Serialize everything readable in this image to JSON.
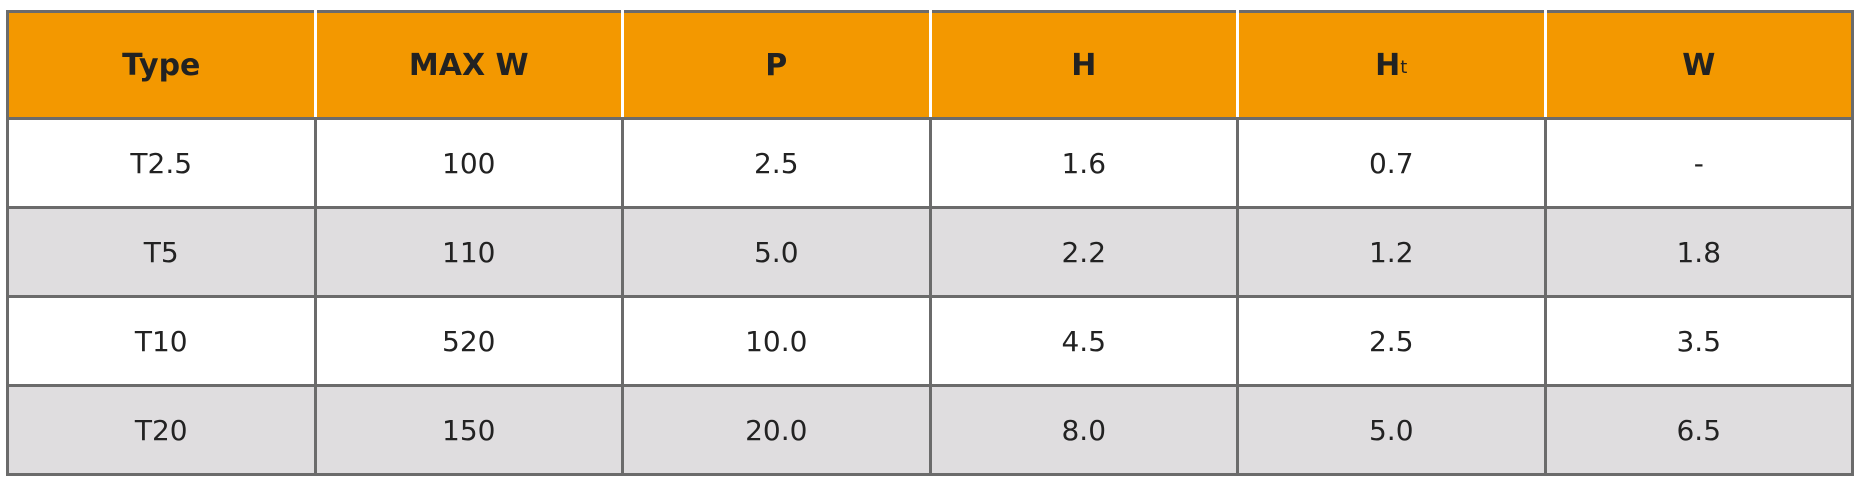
{
  "table": {
    "header": [
      "Type",
      "MAX  W",
      "P",
      "H",
      {
        "main": "H",
        "sub": "t"
      },
      "W"
    ],
    "rows": [
      [
        "T2.5",
        "100",
        "2.5",
        "1.6",
        "0.7",
        "-"
      ],
      [
        "T5",
        "110",
        "5.0",
        "2.2",
        "1.2",
        "1.8"
      ],
      [
        "T10",
        "520",
        "10.0",
        "4.5",
        "2.5",
        "3.5"
      ],
      [
        "T20",
        "150",
        "20.0",
        "8.0",
        "5.0",
        "6.5"
      ]
    ]
  }
}
